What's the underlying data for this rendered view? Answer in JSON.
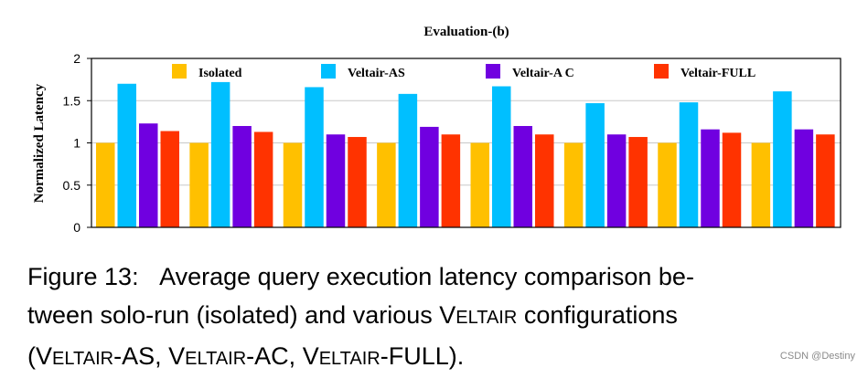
{
  "chart_data": {
    "type": "bar",
    "title": "Evaluation-(b)",
    "ylabel": "Normalized Latency",
    "xlabel": "",
    "ylim": [
      0,
      2
    ],
    "yticks": [
      "0",
      "0.5",
      "1",
      "1.5",
      "2"
    ],
    "ytick_values": [
      0,
      0.5,
      1,
      1.5,
      2
    ],
    "grid": true,
    "legend_position": "top",
    "groups": 8,
    "series": [
      {
        "name": "Isolated",
        "color": "#FFC000",
        "values": [
          1.0,
          1.0,
          1.0,
          1.0,
          1.0,
          1.0,
          1.0,
          1.0
        ]
      },
      {
        "name": "Veltair-AS",
        "color": "#00BFFF",
        "values": [
          1.7,
          1.72,
          1.66,
          1.58,
          1.67,
          1.47,
          1.48,
          1.61
        ]
      },
      {
        "name": "Veltair-A C",
        "color": "#7000E0",
        "values": [
          1.23,
          1.2,
          1.1,
          1.19,
          1.2,
          1.1,
          1.16,
          1.16
        ]
      },
      {
        "name": "Veltair-FULL",
        "color": "#FF3300",
        "values": [
          1.14,
          1.13,
          1.07,
          1.1,
          1.1,
          1.07,
          1.12,
          1.1
        ]
      }
    ]
  },
  "caption": {
    "lead": "Figure 13:",
    "line1_text": "Average query execution latency comparison be-",
    "line2_a": "tween solo-run (isolated) and various ",
    "line2_v": "V",
    "line2_small": "ELTAIR",
    "line2_b": " configurations",
    "line3_open": "(",
    "line3_v1": "V",
    "line3_small1": "ELTAIR",
    "line3_s1": "-AS, ",
    "line3_v2": "V",
    "line3_small2": "ELTAIR",
    "line3_s2": "-AC, ",
    "line3_v3": "V",
    "line3_small3": "ELTAIR",
    "line3_s3": "-FULL",
    "line3_close": ")."
  },
  "watermark": "CSDN @Destiny"
}
